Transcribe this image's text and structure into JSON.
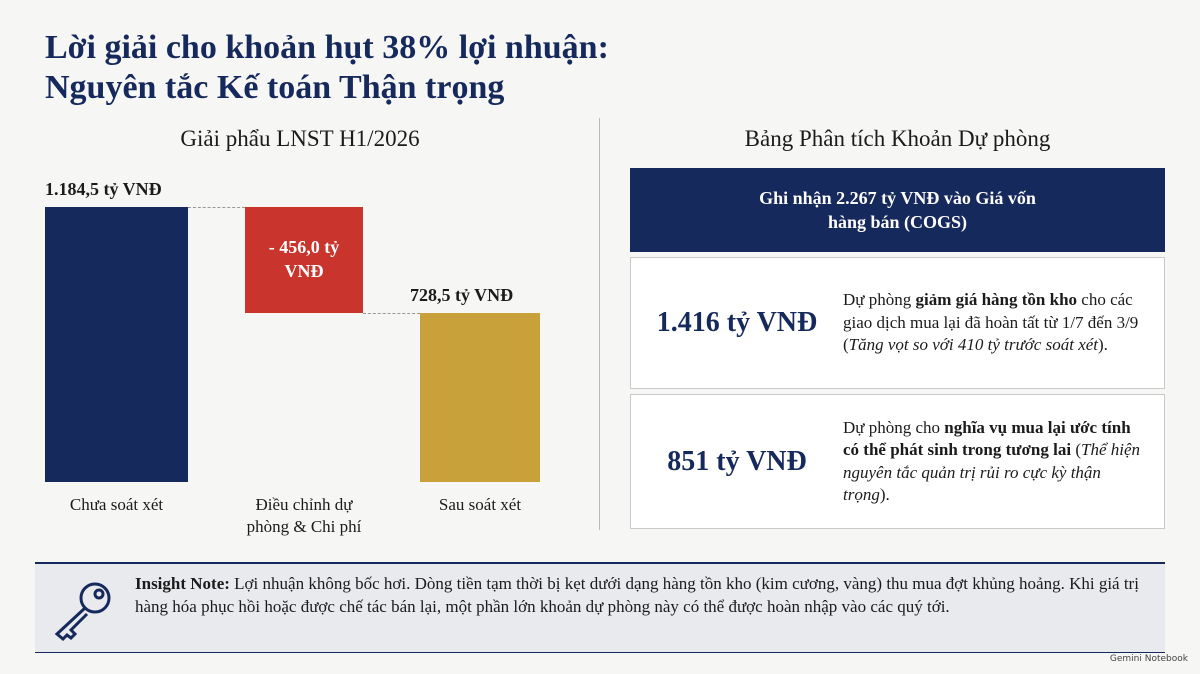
{
  "title": [
    "Lời giải cho khoản hụt 38% lợi nhuận:",
    "Nguyên tắc Kế toán Thận trọng"
  ],
  "chart_data": {
    "type": "waterfall",
    "title": "Giải phẩu LNST H1/2026",
    "categories": [
      "Chưa soát xét",
      "Điều chỉnh dự phòng & Chi phí",
      "Sau soát xét"
    ],
    "values": [
      1184.5,
      -456.0,
      728.5
    ],
    "value_labels": [
      "1.184,5 tỷ VNĐ",
      "- 456,0 tỷ VNĐ",
      "728,5 tỷ VNĐ"
    ],
    "measure": [
      "absolute",
      "relative",
      "total"
    ],
    "colors": [
      "#16295c",
      "#c9352c",
      "#c9a13a"
    ]
  },
  "table": {
    "title": "Bảng Phân tích Khoản Dự phòng",
    "header": "Ghi nhận 2.267 tỷ VNĐ vào Giá vốn hàng bán (COGS)",
    "rows": [
      {
        "amount": "1.416 tỷ VNĐ",
        "description": [
          {
            "text": "Dự phòng ",
            "style": "normal"
          },
          {
            "text": "giảm giá hàng tồn kho",
            "style": "bold"
          },
          {
            "text": " cho các giao dịch mua lại đã hoàn tất từ 1/7 đến 3/9 (",
            "style": "normal"
          },
          {
            "text": "Tăng vọt so với 410 tỷ trước soát xét",
            "style": "italic"
          },
          {
            "text": ").",
            "style": "normal"
          }
        ]
      },
      {
        "amount": "851 tỷ VNĐ",
        "description": [
          {
            "text": "Dự phòng cho ",
            "style": "normal"
          },
          {
            "text": "nghĩa vụ mua lại ước tính có thể phát sinh trong tương lai",
            "style": "bold"
          },
          {
            "text": " (",
            "style": "normal"
          },
          {
            "text": "Thể hiện nguyên tắc quản trị rủi ro cực kỳ thận trọng",
            "style": "italic"
          },
          {
            "text": ").",
            "style": "normal"
          }
        ]
      }
    ]
  },
  "note": [
    {
      "text": "Insight Note:",
      "style": "bold"
    },
    {
      "text": " Lợi nhuận không bốc hơi. Dòng tiền tạm thời bị kẹt dưới dạng hàng tồn kho (kim cương, vàng) thu mua đợt khủng hoảng. Khi giá trị hàng hóa phục hồi hoặc được chế tác bán lại, một phần lớn khoản dự phòng này có thể được hoàn nhập vào các quý tới.",
      "style": "normal"
    }
  ],
  "watermark": "Gemini Notebook"
}
